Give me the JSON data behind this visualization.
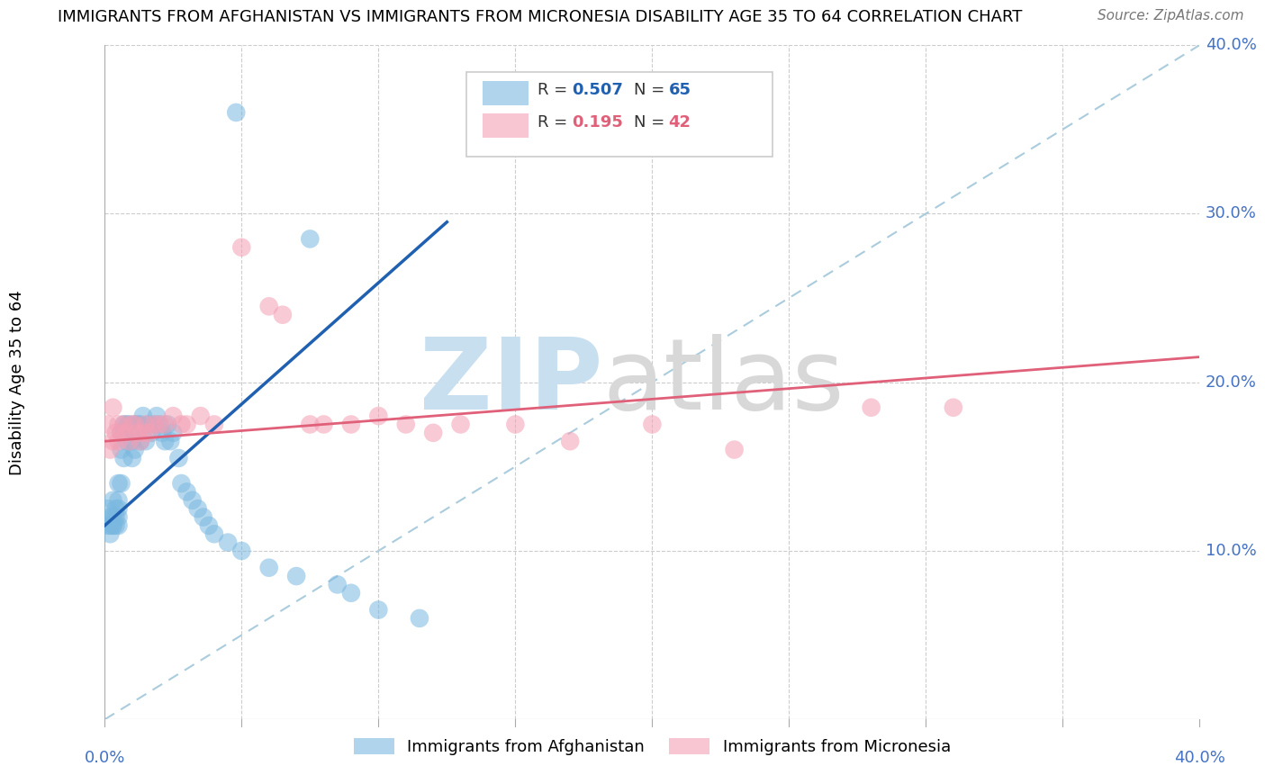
{
  "title": "IMMIGRANTS FROM AFGHANISTAN VS IMMIGRANTS FROM MICRONESIA DISABILITY AGE 35 TO 64 CORRELATION CHART",
  "source": "Source: ZipAtlas.com",
  "ylabel": "Disability Age 35 to 64",
  "xlim": [
    0.0,
    0.4
  ],
  "ylim": [
    0.0,
    0.4
  ],
  "legend_R1": "0.507",
  "legend_N1": "65",
  "legend_R2": "0.195",
  "legend_N2": "42",
  "color_afghanistan": "#7ab8e0",
  "color_micronesia": "#f4a0b5",
  "color_afghanistan_line": "#2060b0",
  "color_micronesia_line": "#e0607a",
  "color_diag_line": "#aaccdd",
  "color_right_axis": "#4472c4",
  "color_bottom_axis": "#4472c4",
  "color_grid": "#cccccc",
  "afg_line_x0": 0.0,
  "afg_line_y0": 0.115,
  "afg_line_x1": 0.125,
  "afg_line_y1": 0.295,
  "mic_line_x0": 0.0,
  "mic_line_y0": 0.165,
  "mic_line_x1": 0.4,
  "mic_line_y1": 0.215,
  "afg_x": [
    0.001,
    0.001,
    0.002,
    0.002,
    0.002,
    0.003,
    0.003,
    0.003,
    0.003,
    0.004,
    0.004,
    0.004,
    0.005,
    0.005,
    0.005,
    0.005,
    0.005,
    0.006,
    0.006,
    0.006,
    0.007,
    0.007,
    0.007,
    0.008,
    0.008,
    0.009,
    0.009,
    0.01,
    0.01,
    0.011,
    0.011,
    0.012,
    0.012,
    0.013,
    0.013,
    0.014,
    0.015,
    0.016,
    0.017,
    0.018,
    0.019,
    0.02,
    0.021,
    0.022,
    0.023,
    0.024,
    0.025,
    0.027,
    0.028,
    0.03,
    0.032,
    0.034,
    0.036,
    0.038,
    0.04,
    0.045,
    0.05,
    0.06,
    0.07,
    0.085,
    0.09,
    0.1,
    0.115,
    0.048,
    0.075
  ],
  "afg_y": [
    0.115,
    0.125,
    0.11,
    0.12,
    0.115,
    0.115,
    0.12,
    0.13,
    0.115,
    0.12,
    0.125,
    0.115,
    0.13,
    0.125,
    0.12,
    0.14,
    0.115,
    0.16,
    0.14,
    0.17,
    0.17,
    0.155,
    0.175,
    0.175,
    0.165,
    0.17,
    0.175,
    0.165,
    0.155,
    0.175,
    0.16,
    0.17,
    0.175,
    0.165,
    0.175,
    0.18,
    0.165,
    0.175,
    0.17,
    0.175,
    0.18,
    0.175,
    0.17,
    0.165,
    0.175,
    0.165,
    0.17,
    0.155,
    0.14,
    0.135,
    0.13,
    0.125,
    0.12,
    0.115,
    0.11,
    0.105,
    0.1,
    0.09,
    0.085,
    0.08,
    0.075,
    0.065,
    0.06,
    0.36,
    0.285
  ],
  "mic_x": [
    0.001,
    0.002,
    0.003,
    0.003,
    0.004,
    0.005,
    0.005,
    0.006,
    0.007,
    0.008,
    0.009,
    0.01,
    0.011,
    0.012,
    0.013,
    0.014,
    0.015,
    0.016,
    0.018,
    0.02,
    0.022,
    0.025,
    0.028,
    0.03,
    0.035,
    0.04,
    0.05,
    0.06,
    0.065,
    0.075,
    0.08,
    0.09,
    0.1,
    0.11,
    0.12,
    0.13,
    0.15,
    0.17,
    0.2,
    0.23,
    0.28,
    0.31
  ],
  "mic_y": [
    0.175,
    0.16,
    0.185,
    0.165,
    0.17,
    0.175,
    0.165,
    0.17,
    0.175,
    0.17,
    0.165,
    0.175,
    0.175,
    0.17,
    0.165,
    0.17,
    0.175,
    0.17,
    0.175,
    0.175,
    0.175,
    0.18,
    0.175,
    0.175,
    0.18,
    0.175,
    0.28,
    0.245,
    0.24,
    0.175,
    0.175,
    0.175,
    0.18,
    0.175,
    0.17,
    0.175,
    0.175,
    0.165,
    0.175,
    0.16,
    0.185,
    0.185
  ]
}
